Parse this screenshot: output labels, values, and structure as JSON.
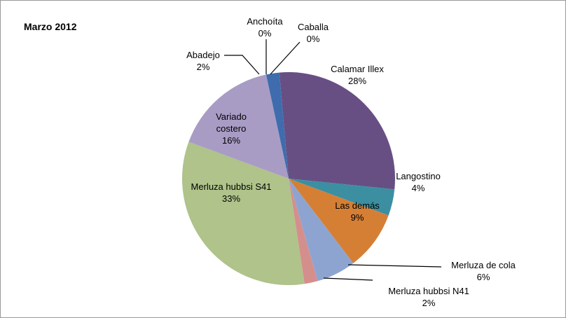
{
  "chart_data": {
    "type": "pie",
    "title": "Marzo 2012",
    "categories": [
      "Calamar Illex",
      "Langostino",
      "Las demás",
      "Merluza de cola",
      "Merluza hubbsi N41",
      "Merluza hubbsi S41",
      "Variado costero",
      "Abadejo",
      "Anchoíta",
      "Caballa"
    ],
    "values": [
      28,
      4,
      9,
      6,
      2,
      33,
      16,
      2,
      0,
      0
    ],
    "value_labels": [
      "28%",
      "4%",
      "9%",
      "6%",
      "2%",
      "33%",
      "16%",
      "2%",
      "0%",
      "0%"
    ],
    "colors": [
      "#674f84",
      "#3b8fa1",
      "#d57f35",
      "#8ea4d0",
      "#d48f8c",
      "#afc38a",
      "#a89cc5",
      "#3f6cad",
      "#4bacc6",
      "#f79646"
    ]
  }
}
